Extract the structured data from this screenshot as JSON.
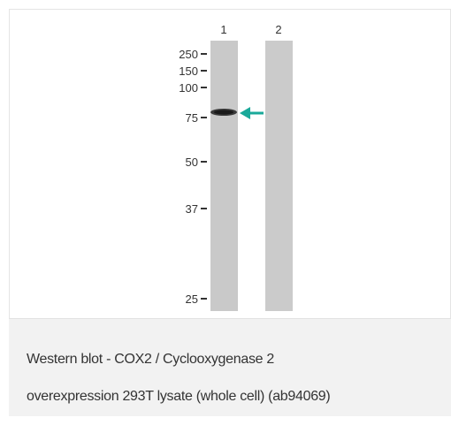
{
  "lanes": [
    "1",
    "2"
  ],
  "markers": [
    "250",
    "150",
    "100",
    "75",
    "50",
    "37",
    "25"
  ],
  "caption": [
    "Western blot - COX2 / Cyclooxygenase 2",
    "overexpression 293T lysate (whole cell) (ab94069)"
  ]
}
